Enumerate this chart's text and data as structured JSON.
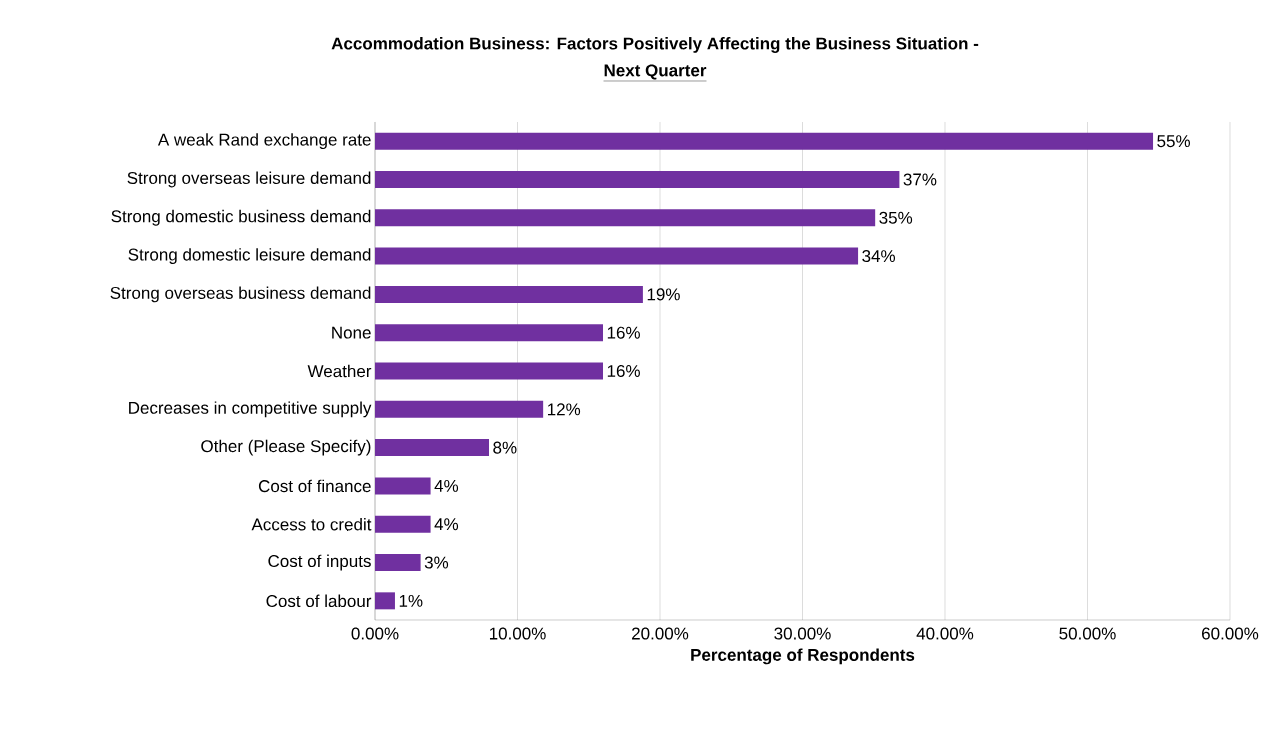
{
  "chart_data": {
    "type": "bar",
    "orientation": "horizontal",
    "title": "Accommodation Business:  Factors Positively Affecting the Business Situation -",
    "subtitle": "Next Quarter",
    "xlabel": "Percentage of Respondents",
    "categories": [
      "A weak Rand exchange rate",
      "Strong overseas leisure demand",
      "Strong domestic business demand",
      "Strong domestic leisure demand",
      "Strong overseas business demand",
      "None",
      "Weather",
      "Decreases in competitive supply",
      "Other (Please Specify)",
      "Cost of finance",
      "Access to credit",
      "Cost of inputs",
      "Cost of labour"
    ],
    "values": [
      54.6,
      36.8,
      35.1,
      33.9,
      18.8,
      16.0,
      16.0,
      11.8,
      8.0,
      3.9,
      3.9,
      3.2,
      1.4
    ],
    "value_labels": [
      "55%",
      "37%",
      "35%",
      "34%",
      "19%",
      "16%",
      "16%",
      "12%",
      "8%",
      "4%",
      "4%",
      "3%",
      "1%"
    ],
    "color": "#7030a0",
    "xlim": [
      0,
      60
    ],
    "xticks": [
      {
        "value": 0,
        "label": "0.00%"
      },
      {
        "value": 10,
        "label": "10.00%"
      },
      {
        "value": 20,
        "label": "20.00%"
      },
      {
        "value": 30,
        "label": "30.00%"
      },
      {
        "value": 40,
        "label": "40.00%"
      },
      {
        "value": 50,
        "label": "50.00%"
      },
      {
        "value": 60,
        "label": "60.00%"
      }
    ],
    "grid": "x"
  }
}
